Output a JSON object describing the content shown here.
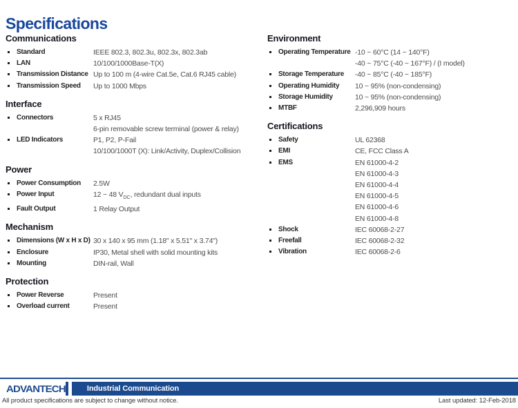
{
  "page": {
    "title": "Specifications"
  },
  "columns": {
    "left": [
      {
        "title": "Communications",
        "rows": [
          {
            "label": "Standard",
            "lines": [
              "IEEE 802.3, 802.3u, 802.3x, 802.3ab"
            ]
          },
          {
            "label": "LAN",
            "lines": [
              "10/100/1000Base-T(X)"
            ]
          },
          {
            "label": "Transmission Distance",
            "lines": [
              "Up to 100 m (4-wire Cat.5e, Cat.6 RJ45 cable)"
            ]
          },
          {
            "label": "Transmission Speed",
            "lines": [
              "Up to 1000 Mbps"
            ]
          }
        ]
      },
      {
        "title": "Interface",
        "rows": [
          {
            "label": "Connectors",
            "lines": [
              "5 x RJ45",
              "6-pin removable screw terminal (power & relay)"
            ]
          },
          {
            "label": "LED Indicators",
            "lines": [
              "P1, P2, P-Fail",
              "10/100/1000T (X): Link/Activity, Duplex/Collision"
            ]
          }
        ]
      },
      {
        "title": "Power",
        "rows": [
          {
            "label": "Power Consumption",
            "lines": [
              "2.5W"
            ]
          },
          {
            "label": "Power Input",
            "lines": [
              {
                "pre": "12 ~ 48 V",
                "sub": "DC",
                "post": ", redundant dual inputs"
              }
            ]
          },
          {
            "label": "Fault Output",
            "lines": [
              "1 Relay Output"
            ]
          }
        ]
      },
      {
        "title": "Mechanism",
        "rows": [
          {
            "label": "Dimensions (W x H x D)",
            "lines": [
              "30 x 140 x 95 mm (1.18\" x 5.51\" x 3.74\")"
            ]
          },
          {
            "label": "Enclosure",
            "lines": [
              "IP30, Metal shell with solid mounting kits"
            ]
          },
          {
            "label": "Mounting",
            "lines": [
              "DIN-rail, Wall"
            ]
          }
        ]
      },
      {
        "title": "Protection",
        "rows": [
          {
            "label": "Power Reverse",
            "lines": [
              "Present"
            ]
          },
          {
            "label": "Overload current",
            "lines": [
              "Present"
            ]
          }
        ]
      }
    ],
    "right": [
      {
        "title": "Environment",
        "rows": [
          {
            "label": "Operating Temperature",
            "lines": [
              "-10 ~ 60°C (14 ~ 140°F)",
              "-40 ~ 75°C (-40 ~ 167°F) / (I model)"
            ]
          },
          {
            "label": "Storage Temperature",
            "lines": [
              "-40 ~ 85°C (-40 ~ 185°F)"
            ]
          },
          {
            "label": "Operating Humidity",
            "lines": [
              "10 ~ 95% (non-condensing)"
            ]
          },
          {
            "label": "Storage Humidity",
            "lines": [
              "10 ~ 95% (non-condensing)"
            ]
          },
          {
            "label": "MTBF",
            "lines": [
              "2,296,909 hours"
            ]
          }
        ]
      },
      {
        "title": "Certifications",
        "rows": [
          {
            "label": "Safety",
            "lines": [
              "UL 62368"
            ]
          },
          {
            "label": "EMI",
            "lines": [
              "CE, FCC Class A"
            ]
          },
          {
            "label": "EMS",
            "lines": [
              "EN 61000-4-2",
              "EN 61000-4-3",
              "EN 61000-4-4",
              "EN 61000-4-5",
              "EN 61000-4-6",
              "EN 61000-4-8"
            ]
          },
          {
            "label": "Shock",
            "lines": [
              "IEC 60068-2-27"
            ]
          },
          {
            "label": "Freefall",
            "lines": [
              "IEC 60068-2-32"
            ]
          },
          {
            "label": "Vibration",
            "lines": [
              "IEC 60068-2-6"
            ]
          }
        ]
      }
    ]
  },
  "footer": {
    "logo_text": "ADVANTECH",
    "bar_label": "Industrial Communication",
    "disclaimer": "All product specifications are subject to change without notice.",
    "last_updated": "Last updated: 12-Feb-2018"
  },
  "colors": {
    "title_blue": "#17479e",
    "footer_blue": "#1b4a8e",
    "heading": "#15151f",
    "label": "#222222",
    "value": "#4b4b4b"
  }
}
